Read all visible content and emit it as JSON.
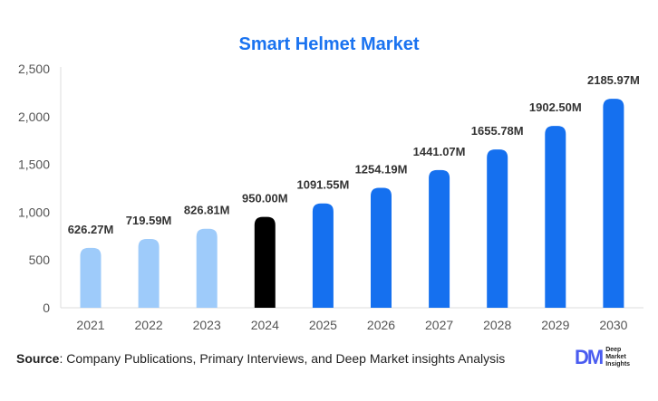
{
  "chart_data": {
    "type": "bar",
    "title": "Smart Helmet Market",
    "categories": [
      "2021",
      "2022",
      "2023",
      "2024",
      "2025",
      "2026",
      "2027",
      "2028",
      "2029",
      "2030"
    ],
    "values": [
      626.27,
      719.59,
      826.81,
      950.0,
      1091.55,
      1254.19,
      1441.07,
      1655.78,
      1902.5,
      2185.97
    ],
    "data_labels": [
      "626.27M",
      "719.59M",
      "826.81M",
      "950.00M",
      "1091.55M",
      "1254.19M",
      "1441.07M",
      "1655.78M",
      "1902.50M",
      "2185.97M"
    ],
    "bar_colors": [
      "#9ecbfa",
      "#9ecbfa",
      "#9ecbfa",
      "#000000",
      "#1570ef",
      "#1570ef",
      "#1570ef",
      "#1570ef",
      "#1570ef",
      "#1570ef"
    ],
    "ylim": [
      0,
      2500
    ],
    "yticks": [
      0,
      500,
      1000,
      1500,
      2000,
      2500
    ],
    "ytick_labels": [
      "0",
      "500",
      "1,000",
      "1,500",
      "2,000",
      "2,500"
    ],
    "xlabel": "",
    "ylabel": "",
    "grid": false,
    "legend": "none"
  },
  "source": {
    "label": "Source",
    "text": ": Company Publications, Primary Interviews, and Deep Market insights Analysis"
  },
  "logo": {
    "mark": "DM",
    "text": [
      "Deep",
      "Market",
      "Insights"
    ]
  }
}
